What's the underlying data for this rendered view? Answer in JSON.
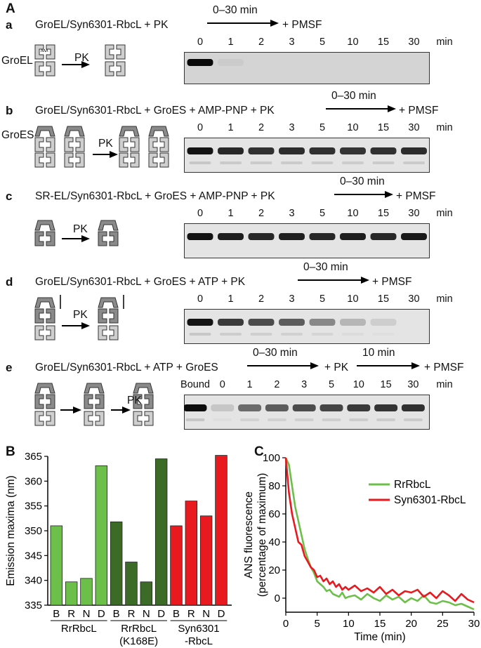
{
  "panel_A": {
    "letter": "A",
    "time_unit": "min",
    "rows": [
      {
        "letter": "a",
        "equation": "GroEL/Syn6301-RbcL + PK",
        "arrow_label": "0–30 min",
        "after_arrow": "+ PMSF",
        "cartoon_label": "GroEL",
        "pk_label": "PK",
        "lanes": [
          "0",
          "1",
          "2",
          "3",
          "5",
          "10",
          "15",
          "30"
        ],
        "band_intensity": [
          1.0,
          0.08,
          0,
          0,
          0,
          0,
          0,
          0
        ]
      },
      {
        "letter": "b",
        "equation": "GroEL/Syn6301-RbcL + GroES + AMP-PNP + PK",
        "arrow_label": "0–30 min",
        "after_arrow": "+ PMSF",
        "cartoon_label": "GroES",
        "pk_label": "PK",
        "lanes": [
          "0",
          "1",
          "2",
          "3",
          "5",
          "10",
          "15",
          "30"
        ],
        "band_intensity": [
          0.95,
          0.85,
          0.8,
          0.82,
          0.8,
          0.78,
          0.8,
          0.82
        ]
      },
      {
        "letter": "c",
        "equation": "SR-EL/Syn6301-RbcL + GroES + AMP-PNP + PK",
        "arrow_label": "0–30 min",
        "after_arrow": "+ PMSF",
        "pk_label": "PK",
        "lanes": [
          "0",
          "1",
          "2",
          "3",
          "5",
          "10",
          "15",
          "30"
        ],
        "band_intensity": [
          0.95,
          0.9,
          0.85,
          0.88,
          0.85,
          0.9,
          0.85,
          0.92
        ]
      },
      {
        "letter": "d",
        "equation": "GroEL/Syn6301-RbcL + GroES + ATP + PK",
        "arrow_label": "0–30 min",
        "after_arrow": "+ PMSF",
        "pk_label": "PK",
        "lanes": [
          "0",
          "1",
          "2",
          "3",
          "5",
          "10",
          "15",
          "30"
        ],
        "band_intensity": [
          0.95,
          0.75,
          0.7,
          0.65,
          0.5,
          0.3,
          0.15,
          0
        ]
      },
      {
        "letter": "e",
        "equation": "GroEL/Syn6301-RbcL + ATP + GroES",
        "arrow_label": "0–30 min",
        "middle": "+ PK",
        "arrow2_label": "10 min",
        "after_arrow": "+ PMSF",
        "pk_label": "PK",
        "lanes": [
          "Bound",
          "0",
          "1",
          "2",
          "3",
          "5",
          "10",
          "15",
          "30"
        ],
        "band_intensity": [
          0.98,
          0.2,
          0.6,
          0.65,
          0.7,
          0.72,
          0.75,
          0.78,
          0.8
        ]
      }
    ]
  },
  "chart_data": [
    {
      "panel": "B",
      "type": "bar",
      "ylabel": "Emission maxima (nm)",
      "ylim": [
        335,
        365
      ],
      "yticks": [
        335,
        340,
        345,
        350,
        355,
        360,
        365
      ],
      "categories": [
        "B",
        "R",
        "N",
        "D",
        "B",
        "R",
        "N",
        "D",
        "B",
        "R",
        "N",
        "D"
      ],
      "groups": [
        {
          "name": "RrRbcL",
          "values": [
            351,
            339.7,
            340.4,
            363.1
          ],
          "color": "#6cc04a"
        },
        {
          "name": "RrRbcL (K168E)",
          "values": [
            351.8,
            343.7,
            339.7,
            364.5
          ],
          "color": "#3b6b26"
        },
        {
          "name": "Syn6301 -RbcL",
          "values": [
            351,
            356,
            353,
            365.2
          ],
          "color": "#e8191f"
        }
      ],
      "group_label_lines": [
        [
          "RrRbcL"
        ],
        [
          "RrRbcL",
          "(K168E)"
        ],
        [
          "Syn6301",
          "-RbcL"
        ]
      ]
    },
    {
      "panel": "C",
      "type": "line",
      "xlabel": "Time (min)",
      "ylabel_lines": [
        "ANS fluorescence",
        "(percentage of maximum)"
      ],
      "xlim": [
        0,
        30
      ],
      "ylim": [
        -10,
        100
      ],
      "xticks": [
        0,
        5,
        10,
        15,
        20,
        25,
        30
      ],
      "yticks": [
        0,
        20,
        40,
        60,
        80,
        100
      ],
      "legend": "top-right",
      "series": [
        {
          "name": "RrRbcL",
          "color": "#6cc04a",
          "x": [
            0,
            0.5,
            1,
            1.5,
            2,
            2.5,
            3,
            3.5,
            4,
            4.5,
            5,
            5.5,
            6,
            6.5,
            7,
            7.5,
            8,
            8.5,
            9,
            9.5,
            10,
            11,
            12,
            13,
            14,
            15,
            16,
            17,
            18,
            19,
            20,
            21,
            22,
            23,
            24,
            25,
            26,
            27,
            28,
            29,
            30
          ],
          "y": [
            100,
            95,
            80,
            65,
            55,
            45,
            35,
            28,
            22,
            18,
            12,
            10,
            8,
            5,
            6,
            3,
            2,
            1,
            4,
            0,
            1,
            2,
            -1,
            3,
            0,
            -2,
            2,
            -1,
            1,
            -3,
            0,
            -2,
            2,
            -3,
            -4,
            -2,
            -3,
            -5,
            -4,
            -6,
            -8
          ]
        },
        {
          "name": "Syn6301-RbcL",
          "color": "#e8191f",
          "x": [
            0,
            0.5,
            1,
            1.5,
            2,
            2.5,
            3,
            3.5,
            4,
            4.5,
            5,
            5.5,
            6,
            6.5,
            7,
            7.5,
            8,
            8.5,
            9,
            9.5,
            10,
            11,
            12,
            13,
            14,
            15,
            16,
            17,
            18,
            19,
            20,
            21,
            22,
            23,
            24,
            25,
            26,
            27,
            28,
            29,
            30
          ],
          "y": [
            100,
            75,
            60,
            50,
            40,
            38,
            30,
            26,
            22,
            20,
            15,
            16,
            12,
            14,
            10,
            12,
            8,
            10,
            6,
            8,
            6,
            9,
            5,
            7,
            4,
            8,
            3,
            6,
            2,
            5,
            4,
            6,
            1,
            4,
            0,
            5,
            2,
            -2,
            3,
            -1,
            -3
          ]
        }
      ]
    }
  ]
}
